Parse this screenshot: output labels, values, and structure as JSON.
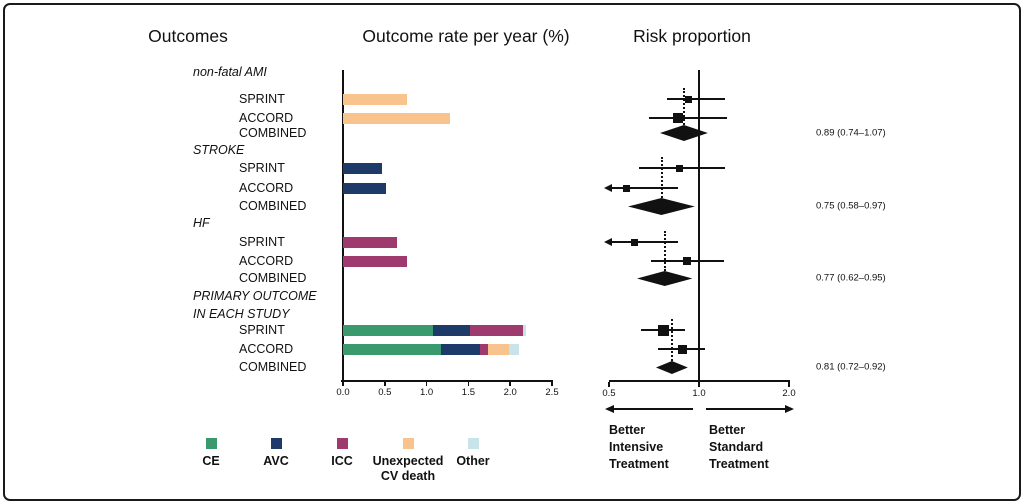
{
  "figure": {
    "headers": {
      "outcomes": "Outcomes",
      "rate": "Outcome rate per year (%)",
      "risk": "Risk proportion"
    }
  },
  "colors": {
    "ce": "#3a9a6e",
    "avc": "#1e3a68",
    "icc": "#9e3a6e",
    "unexpected": "#f9c38e",
    "other": "#c9e3ea",
    "ink": "#111111"
  },
  "legend": [
    {
      "key": "ce",
      "label": "CE"
    },
    {
      "key": "avc",
      "label": "AVC"
    },
    {
      "key": "icc",
      "label": "ICC"
    },
    {
      "key": "unexpected",
      "label": "Unexpected CV death"
    },
    {
      "key": "other",
      "label": "Other"
    }
  ],
  "footer": {
    "left_label": [
      "Better",
      "Intensive",
      "Treatment"
    ],
    "right_label": [
      "Better",
      "Standard",
      "Treatment"
    ]
  },
  "chart_data": {
    "type": "bar",
    "description": "Horizontal stacked bar chart of outcome rate per year (%) paired with a forest plot of risk proportion (log scale) for SPRINT and ACCORD trials",
    "bar_axis": {
      "xlim": [
        0,
        2.5
      ],
      "ticks": [
        "0.0",
        "0.5",
        "1.0",
        "1.5",
        "2.0",
        "2.5"
      ]
    },
    "forest_axis": {
      "scale": "log",
      "xlim": [
        0.5,
        2.0
      ],
      "ticks": [
        "0.5",
        "1.0",
        "2.0"
      ],
      "null_line": 1.0
    },
    "rows": [
      {
        "type": "group",
        "label": "non-fatal AMI"
      },
      {
        "type": "study",
        "label": "SPRINT",
        "bar": [
          {
            "k": "unexpected",
            "v": 0.76
          }
        ],
        "forest": {
          "est": 0.92,
          "lo": 0.78,
          "hi": 1.22,
          "weight": 7
        }
      },
      {
        "type": "study",
        "label": "ACCORD",
        "bar": [
          {
            "k": "unexpected",
            "v": 1.28
          }
        ],
        "forest": {
          "est": 0.85,
          "lo": 0.68,
          "hi": 1.24,
          "weight": 10
        }
      },
      {
        "type": "combined",
        "label": "COMBINED",
        "diamond": {
          "est": 0.89,
          "lo": 0.74,
          "hi": 1.07
        },
        "text": "0.89 (0.74–1.07)"
      },
      {
        "type": "group",
        "label": "STROKE"
      },
      {
        "type": "study",
        "label": "SPRINT",
        "bar": [
          {
            "k": "avc",
            "v": 0.47
          }
        ],
        "forest": {
          "est": 0.86,
          "lo": 0.63,
          "hi": 1.22,
          "weight": 7
        }
      },
      {
        "type": "study",
        "label": "ACCORD",
        "bar": [
          {
            "k": "avc",
            "v": 0.51
          }
        ],
        "forest": {
          "est": 0.57,
          "lo": 0.51,
          "hi": 0.85,
          "weight": 7,
          "arrow_lo": true
        }
      },
      {
        "type": "combined",
        "label": "COMBINED",
        "diamond": {
          "est": 0.75,
          "lo": 0.58,
          "hi": 0.97
        },
        "text": "0.75 (0.58–0.97)"
      },
      {
        "type": "group",
        "label": "HF"
      },
      {
        "type": "study",
        "label": "SPRINT",
        "bar": [
          {
            "k": "icc",
            "v": 0.64
          }
        ],
        "forest": {
          "est": 0.61,
          "lo": 0.51,
          "hi": 0.85,
          "weight": 7,
          "arrow_lo": true
        }
      },
      {
        "type": "study",
        "label": "ACCORD",
        "bar": [
          {
            "k": "icc",
            "v": 0.76
          }
        ],
        "forest": {
          "est": 0.91,
          "lo": 0.69,
          "hi": 1.21,
          "weight": 8
        }
      },
      {
        "type": "combined",
        "label": "COMBINED",
        "diamond": {
          "est": 0.77,
          "lo": 0.62,
          "hi": 0.95
        },
        "text": "0.77 (0.62–0.95)"
      },
      {
        "type": "group",
        "label": "PRIMARY OUTCOME",
        "label2": "IN EACH STUDY"
      },
      {
        "type": "study",
        "label": "SPRINT",
        "bar": [
          {
            "k": "ce",
            "v": 1.08
          },
          {
            "k": "avc",
            "v": 0.44
          },
          {
            "k": "icc",
            "v": 0.63
          },
          {
            "k": "other",
            "v": 0.04
          }
        ],
        "forest": {
          "est": 0.76,
          "lo": 0.64,
          "hi": 0.9,
          "weight": 11
        }
      },
      {
        "type": "study",
        "label": "ACCORD",
        "bar": [
          {
            "k": "ce",
            "v": 1.17
          },
          {
            "k": "avc",
            "v": 0.47
          },
          {
            "k": "icc",
            "v": 0.1
          },
          {
            "k": "unexpected",
            "v": 0.24
          },
          {
            "k": "other",
            "v": 0.12
          }
        ],
        "forest": {
          "est": 0.88,
          "lo": 0.73,
          "hi": 1.05,
          "weight": 9
        }
      },
      {
        "type": "combined",
        "label": "COMBINED",
        "diamond": {
          "est": 0.81,
          "lo": 0.72,
          "hi": 0.92
        },
        "text": "0.81 (0.72–0.92)"
      }
    ]
  }
}
